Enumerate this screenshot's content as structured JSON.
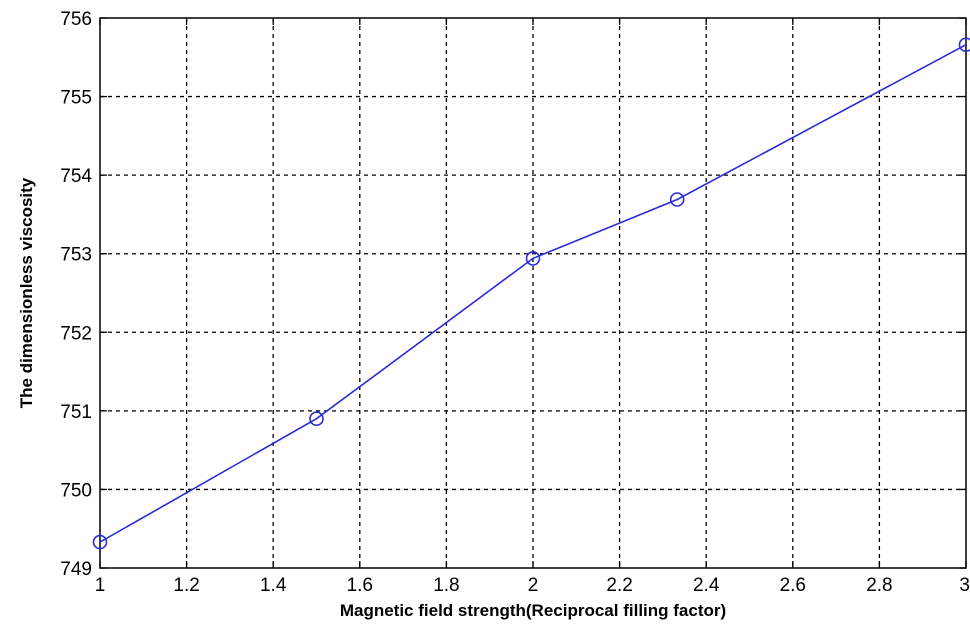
{
  "chart_data": {
    "type": "line",
    "xlabel": "Magnetic field strength(Reciprocal filling factor)",
    "ylabel": "The dimensionless viscosity",
    "xlim": [
      1,
      3
    ],
    "ylim": [
      749,
      756
    ],
    "xticks": [
      1,
      1.2,
      1.4,
      1.6,
      1.8,
      2,
      2.2,
      2.4,
      2.6,
      2.8,
      3
    ],
    "xtick_labels": [
      "1",
      "1.2",
      "1.4",
      "1.6",
      "1.8",
      "2",
      "2.2",
      "2.4",
      "2.6",
      "2.8",
      "3"
    ],
    "yticks": [
      749,
      750,
      751,
      752,
      753,
      754,
      755,
      756
    ],
    "ytick_labels": [
      "749",
      "750",
      "751",
      "752",
      "753",
      "754",
      "755",
      "756"
    ],
    "grid": true,
    "marker": "circle",
    "colors": {
      "series": "#2b2bd9",
      "grid": "#000000"
    },
    "series": [
      {
        "x": [
          1,
          1.5,
          2,
          2.333,
          3
        ],
        "y": [
          749.33,
          750.9,
          752.94,
          753.69,
          755.66
        ]
      }
    ]
  }
}
